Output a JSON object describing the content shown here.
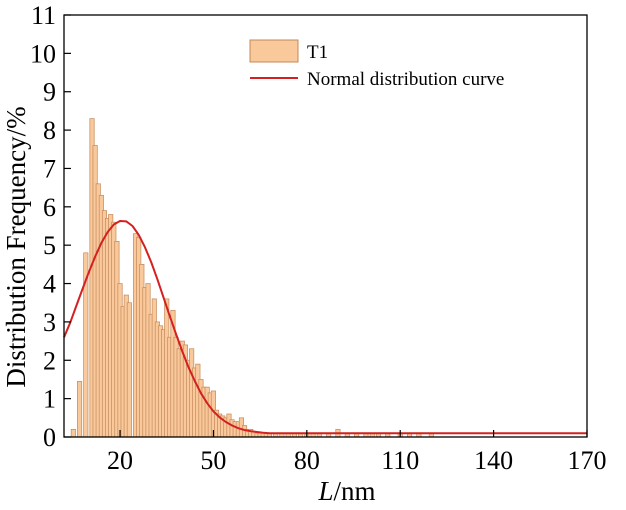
{
  "chart_data": {
    "type": "bar",
    "xlabel_italic": "L",
    "xlabel_rest": "/nm",
    "ylabel": "Distribution Frequency/%",
    "xlim": [
      2,
      170
    ],
    "ylim": [
      0,
      11
    ],
    "xticks": [
      "20",
      "50",
      "80",
      "110",
      "140",
      "170"
    ],
    "xtick_values": [
      20,
      50,
      80,
      110,
      140,
      170
    ],
    "yticks": [
      "0",
      "1",
      "2",
      "3",
      "4",
      "5",
      "6",
      "7",
      "8",
      "9",
      "10",
      "11"
    ],
    "ytick_values": [
      0,
      1,
      2,
      3,
      4,
      5,
      6,
      7,
      8,
      9,
      10,
      11
    ],
    "bar_width": 1.4,
    "grid": false,
    "legend_position": "top-center",
    "series": [
      {
        "name": "T1",
        "kind": "histogram",
        "color": "#F9C89B",
        "edge_color": "#C48A5A",
        "x": [
          5,
          7,
          9,
          11,
          12,
          13,
          14,
          15,
          16,
          17,
          18,
          19,
          20,
          21,
          22,
          23,
          25,
          26,
          27,
          28,
          29,
          30,
          31,
          32,
          33,
          34,
          35,
          36,
          37,
          38,
          39,
          40,
          41,
          42,
          43,
          44,
          45,
          46,
          47,
          48,
          49,
          50,
          51,
          52,
          53,
          54,
          55,
          56,
          57,
          58,
          59,
          60,
          61,
          62,
          63,
          64,
          65,
          66,
          67,
          68,
          70,
          72,
          74,
          76,
          78,
          80,
          82,
          84,
          87,
          90,
          93,
          96,
          99,
          101,
          103,
          106,
          110,
          113,
          116,
          120
        ],
        "values": [
          0.2,
          1.45,
          4.8,
          8.3,
          7.6,
          6.6,
          6.3,
          5.9,
          5.7,
          5.8,
          5.6,
          5.1,
          4.0,
          3.4,
          3.7,
          3.5,
          5.3,
          5.2,
          4.5,
          3.9,
          4.0,
          3.2,
          3.6,
          3.0,
          2.9,
          2.8,
          3.6,
          2.6,
          3.3,
          2.6,
          2.3,
          2.5,
          2.4,
          2.0,
          2.3,
          1.8,
          1.9,
          1.5,
          1.3,
          1.3,
          1.15,
          1.2,
          0.7,
          0.6,
          0.55,
          0.5,
          0.6,
          0.45,
          0.4,
          0.4,
          0.5,
          0.3,
          0.2,
          0.2,
          0.15,
          0.1,
          0.1,
          0.1,
          0.1,
          0.1,
          0.1,
          0.1,
          0.1,
          0.1,
          0.1,
          0.1,
          0.1,
          0.1,
          0.1,
          0.2,
          0.1,
          0.1,
          0.1,
          0.1,
          0.1,
          0.1,
          0.1,
          0.1,
          0.1,
          0.1
        ]
      },
      {
        "name": "Normal distribution curve",
        "kind": "line",
        "color": "#D42020",
        "x": [
          2,
          4,
          6,
          8,
          10,
          12,
          14,
          16,
          18,
          20,
          22,
          24,
          26,
          28,
          30,
          32,
          34,
          36,
          38,
          40,
          42,
          44,
          46,
          48,
          50,
          52,
          54,
          56,
          58,
          60,
          62,
          64,
          66,
          68,
          70,
          75,
          80,
          90,
          100,
          120,
          140,
          170
        ],
        "values": [
          2.6,
          2.98,
          3.43,
          3.87,
          4.3,
          4.7,
          5.06,
          5.34,
          5.54,
          5.63,
          5.62,
          5.5,
          5.27,
          4.95,
          4.56,
          4.11,
          3.63,
          3.15,
          2.68,
          2.23,
          1.82,
          1.46,
          1.14,
          0.88,
          0.67,
          0.51,
          0.39,
          0.3,
          0.23,
          0.18,
          0.15,
          0.13,
          0.11,
          0.1,
          0.1,
          0.1,
          0.1,
          0.1,
          0.1,
          0.1,
          0.1,
          0.1
        ]
      }
    ]
  }
}
